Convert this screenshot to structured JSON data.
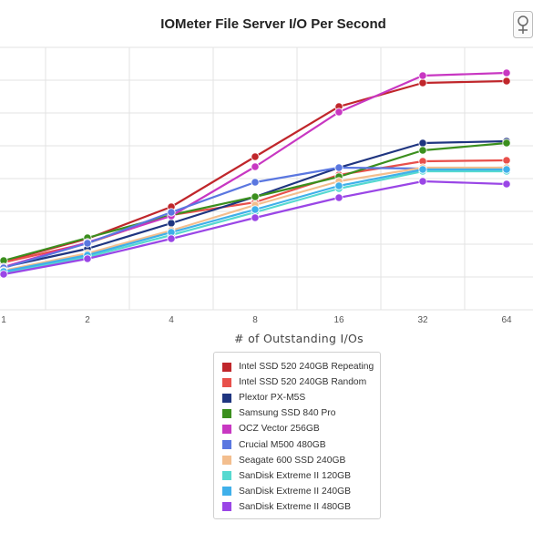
{
  "title": "IOMeter File Server I/O Per Second",
  "export_icon": "export-menu-icon",
  "chart_data": {
    "type": "line",
    "title": "IOMeter File Server I/O Per Second",
    "xlabel": "# of Outstanding I/Os",
    "ylabel": "",
    "categories": [
      "1",
      "2",
      "4",
      "8",
      "16",
      "32",
      "64"
    ],
    "grid": true,
    "legend_position": "bottom-center",
    "series": [
      {
        "name": "Intel SSD 520 240GB Repeating",
        "color": "#c0262b",
        "values": [
          287,
          262,
          227,
          172,
          117,
          91,
          89
        ]
      },
      {
        "name": "Intel SSD 520 240GB Random",
        "color": "#e8504b",
        "values": [
          288,
          267,
          236,
          222,
          192,
          177,
          176
        ]
      },
      {
        "name": "Plextor PX-M5S",
        "color": "#1f3580",
        "values": [
          293,
          273,
          245,
          216,
          184,
          157,
          155
        ]
      },
      {
        "name": "Samsung SSD 840 Pro",
        "color": "#3b8f1e",
        "values": [
          286,
          261,
          236,
          216,
          194,
          165,
          157
        ]
      },
      {
        "name": "OCZ Vector 256GB",
        "color": "#c837c2",
        "values": [
          293,
          266,
          237,
          183,
          123,
          83,
          80
        ]
      },
      {
        "name": "Crucial M500 480GB",
        "color": "#5a77e0",
        "values": [
          294,
          267,
          233,
          200,
          184,
          185,
          184
        ]
      },
      {
        "name": "Seagate 600 SSD 240GB",
        "color": "#f3be8e",
        "values": [
          297,
          278,
          253,
          225,
          199,
          184,
          184
        ]
      },
      {
        "name": "SanDisk Extreme II 120GB",
        "color": "#56d9d0",
        "values": [
          299,
          282,
          258,
          233,
          207,
          188,
          188
        ]
      },
      {
        "name": "SanDisk Extreme II 240GB",
        "color": "#3fb0ea",
        "values": [
          298,
          280,
          255,
          230,
          204,
          186,
          186
        ]
      },
      {
        "name": "SanDisk Extreme II 480GB",
        "color": "#9a46e6",
        "values": [
          301,
          284,
          262,
          239,
          217,
          199,
          202
        ]
      }
    ]
  }
}
